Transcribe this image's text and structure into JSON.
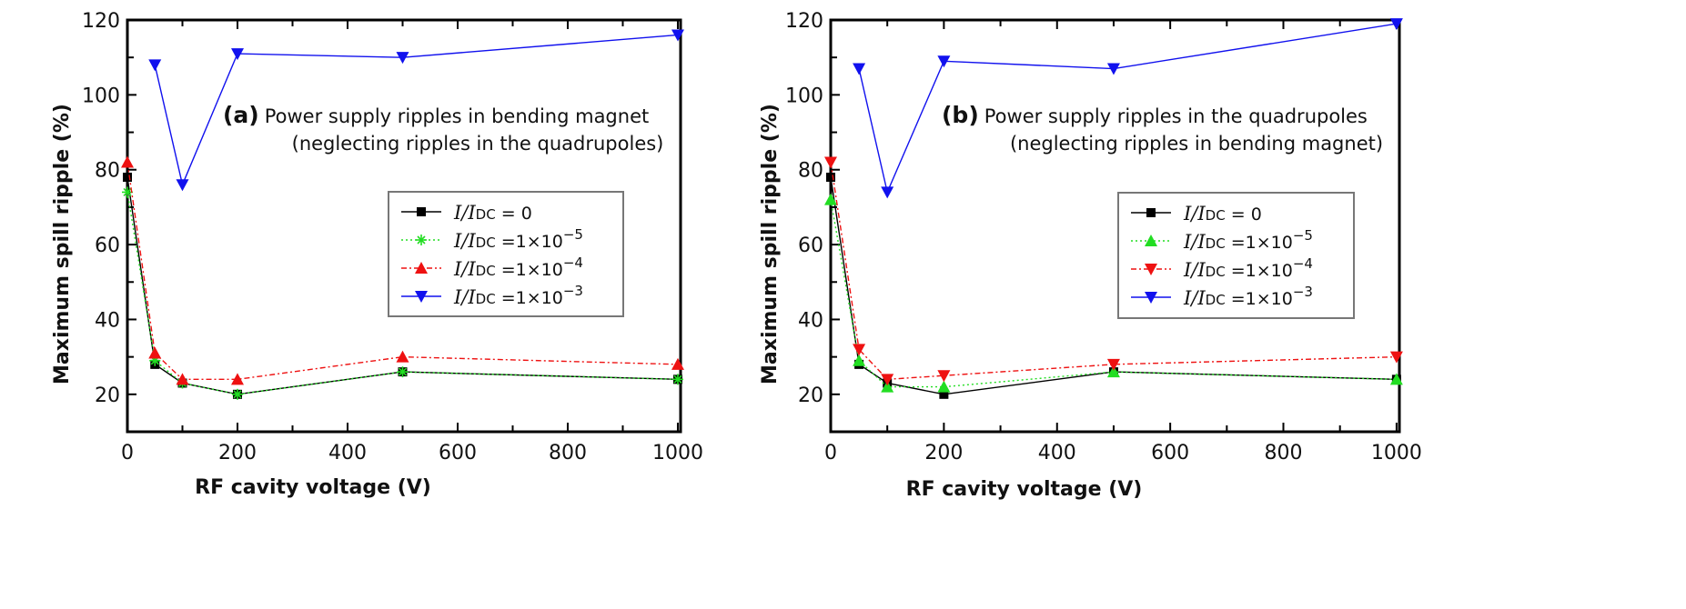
{
  "chart_data": [
    {
      "type": "line",
      "panel": "a",
      "xlabel": "RF cavity voltage (V)",
      "ylabel": "Maximum spill ripple (%)",
      "xlim": [
        0,
        1005
      ],
      "ylim": [
        10,
        120
      ],
      "xticks": [
        0,
        200,
        400,
        600,
        800,
        1000
      ],
      "yticks": [
        20,
        40,
        60,
        80,
        100,
        120
      ],
      "annotation": {
        "label": "(a)",
        "line1": "Power supply ripples in bending magnet",
        "line2": "(neglecting ripples in the quadrupoles)"
      },
      "legend_position": "center-right",
      "series": [
        {
          "name": "I/I_DC = 0",
          "name_parts": [
            "I/I",
            "DC",
            " = 0",
            ""
          ],
          "color": "#000000",
          "marker": "square",
          "dash": "",
          "x": [
            0,
            50,
            100,
            200,
            500,
            1000
          ],
          "values": [
            78,
            28,
            23,
            20,
            26,
            24
          ]
        },
        {
          "name": "I/I_DC = 1×10^-5",
          "name_parts": [
            "I/I",
            "DC",
            " =1×10",
            "−5"
          ],
          "color": "#22dd22",
          "marker": "asterisk",
          "dash": "2,3",
          "x": [
            0,
            50,
            100,
            200,
            500,
            1000
          ],
          "values": [
            74,
            29,
            23,
            20,
            26,
            24
          ]
        },
        {
          "name": "I/I_DC = 1×10^-4",
          "name_parts": [
            "I/I",
            "DC",
            " =1×10",
            "−4"
          ],
          "color": "#ee1111",
          "marker": "triangle-up",
          "dash": "6,3,2,3",
          "x": [
            0,
            50,
            100,
            200,
            500,
            1000
          ],
          "values": [
            82,
            31,
            24,
            24,
            30,
            28
          ]
        },
        {
          "name": "I/I_DC = 1×10^-3",
          "name_parts": [
            "I/I",
            "DC",
            " =1×10",
            "−3"
          ],
          "color": "#1111ee",
          "marker": "triangle-down",
          "dash": "",
          "x": [
            50,
            100,
            200,
            500,
            1000
          ],
          "values": [
            108,
            76,
            111,
            110,
            116
          ]
        }
      ]
    },
    {
      "type": "line",
      "panel": "b",
      "xlabel": "RF cavity voltage (V)",
      "ylabel": "Maximum spill ripple (%)",
      "xlim": [
        0,
        1005
      ],
      "ylim": [
        10,
        120
      ],
      "xticks": [
        0,
        200,
        400,
        600,
        800,
        1000
      ],
      "yticks": [
        20,
        40,
        60,
        80,
        100,
        120
      ],
      "annotation": {
        "label": "(b)",
        "line1": "Power supply ripples in the quadrupoles",
        "line2": "(neglecting ripples in bending magnet)"
      },
      "legend_position": "center-right",
      "series": [
        {
          "name": "I/I_DC = 0",
          "name_parts": [
            "I/I",
            "DC",
            " = 0",
            ""
          ],
          "color": "#000000",
          "marker": "square",
          "dash": "",
          "x": [
            0,
            50,
            100,
            200,
            500,
            1000
          ],
          "values": [
            78,
            28,
            23,
            20,
            26,
            24
          ]
        },
        {
          "name": "I/I_DC = 1×10^-5",
          "name_parts": [
            "I/I",
            "DC",
            " =1×10",
            "−5"
          ],
          "color": "#22dd22",
          "marker": "triangle-up",
          "dash": "2,3",
          "x": [
            0,
            50,
            100,
            200,
            500,
            1000
          ],
          "values": [
            72,
            29,
            22,
            22,
            26,
            24
          ]
        },
        {
          "name": "I/I_DC = 1×10^-4",
          "name_parts": [
            "I/I",
            "DC",
            " =1×10",
            "−4"
          ],
          "color": "#ee1111",
          "marker": "triangle-down",
          "dash": "6,3,2,3",
          "x": [
            0,
            50,
            100,
            200,
            500,
            1000
          ],
          "values": [
            82,
            32,
            24,
            25,
            28,
            30
          ]
        },
        {
          "name": "I/I_DC = 1×10^-3",
          "name_parts": [
            "I/I",
            "DC",
            " =1×10",
            "−3"
          ],
          "color": "#1111ee",
          "marker": "triangle-down",
          "dash": "",
          "x": [
            50,
            100,
            200,
            500,
            1000
          ],
          "values": [
            107,
            74,
            109,
            107,
            119
          ]
        }
      ]
    }
  ]
}
